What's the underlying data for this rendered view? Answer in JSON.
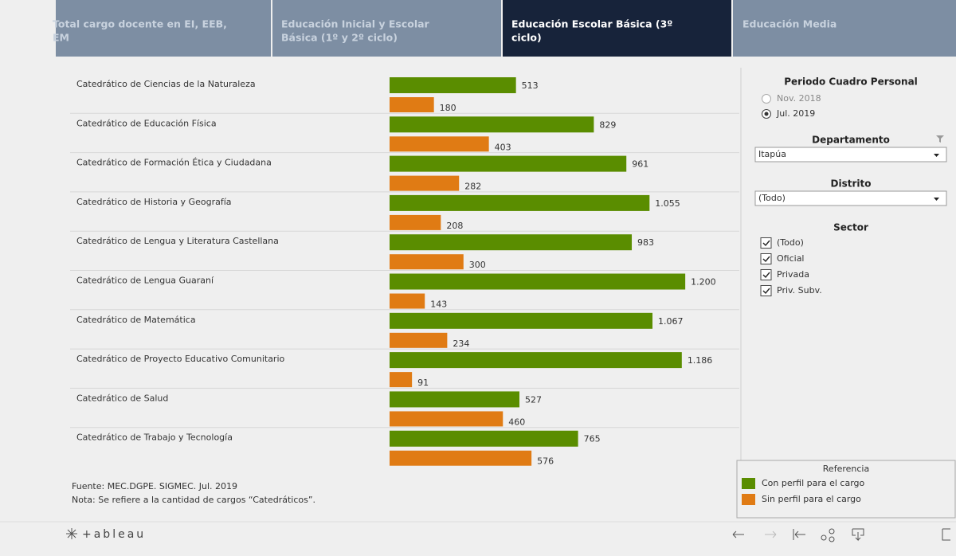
{
  "tabs": [
    {
      "lines": [
        "Total cargo docente en EI, EEB,",
        "EM"
      ]
    },
    {
      "lines": [
        "Educación Inicial y Escolar",
        "Básica (1º y 2º ciclo)"
      ]
    },
    {
      "lines": [
        "Educación Escolar Básica (3º",
        "ciclo)"
      ]
    },
    {
      "lines": [
        "Educación Media"
      ]
    }
  ],
  "chart_data": {
    "type": "bar",
    "orientation": "horizontal",
    "categories": [
      "Catedrático de Ciencias de la Naturaleza",
      "Catedrático de Educación Física",
      "Catedrático de Formación Ética y Ciudadana",
      "Catedrático de Historia y Geografía",
      "Catedrático de Lengua y Literatura Castellana",
      "Catedrático de Lengua Guaraní",
      "Catedrático de Matemática",
      "Catedrático de Proyecto Educativo Comunitario",
      "Catedrático de Salud",
      "Catedrático de Trabajo y Tecnología"
    ],
    "series": [
      {
        "name": "Con perfil para el cargo",
        "color": "#5a8d00",
        "values": [
          513,
          829,
          961,
          1055,
          983,
          1200,
          1067,
          1186,
          527,
          765
        ],
        "value_labels": [
          "513",
          "829",
          "961",
          "1.055",
          "983",
          "1.200",
          "1.067",
          "1.186",
          "527",
          "765"
        ]
      },
      {
        "name": "Sin perfil para el cargo",
        "color": "#e07b14",
        "values": [
          180,
          403,
          282,
          208,
          300,
          143,
          234,
          91,
          460,
          576
        ],
        "value_labels": [
          "180",
          "403",
          "282",
          "208",
          "300",
          "143",
          "234",
          "91",
          "460",
          "576"
        ]
      }
    ],
    "xlim": [
      0,
      1400
    ],
    "legend": {
      "title": "Referencia",
      "position": "bottom right"
    }
  },
  "filters": {
    "periodo": {
      "title": "Periodo Cuadro Personal",
      "options": [
        "Nov. 2018",
        "Jul. 2019"
      ],
      "selected": 1
    },
    "departamento": {
      "title": "Departamento",
      "value": "Itapúa"
    },
    "distrito": {
      "title": "Distrito",
      "value": "(Todo)"
    },
    "sector": {
      "title": "Sector",
      "options": [
        "(Todo)",
        "Oficial",
        "Privada",
        "Priv. Subv."
      ]
    }
  },
  "footer": {
    "fuente_label": "Fuente:",
    "fuente": "MEC.DGPE. SIGMEC.  Jul. 2019",
    "nota_label": "Nota:",
    "nota": "Se refiere a la cantidad de cargos “Catedráticos”.",
    "brand": "+ableau"
  }
}
